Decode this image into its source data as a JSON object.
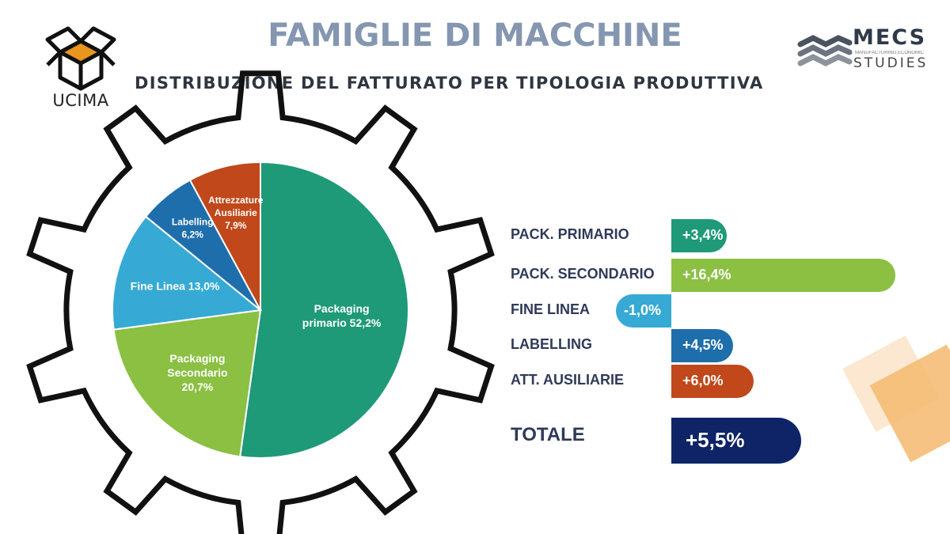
{
  "header": {
    "title": "FAMIGLIE DI MACCHINE",
    "subtitle": "DISTRIBUZIONE DEL FATTURATO PER TIPOLOGIA PRODUTTIVA"
  },
  "logos": {
    "left": {
      "text": "UCIMA",
      "icon": "box-icon"
    },
    "right": {
      "name": "MECS",
      "tagline": "MANUFACTURING ECONOMIC",
      "studies": "STUDIES",
      "icon": "waves-icon"
    }
  },
  "colors": {
    "title": "#8496b0",
    "packaging_primario": "#1e9a78",
    "packaging_secondario": "#8bc043",
    "fine_linea": "#36aad4",
    "labelling": "#1f6eac",
    "attrezzature": "#c0481a",
    "totale": "#0e2467"
  },
  "chart_data": [
    {
      "type": "pie",
      "slices": [
        {
          "label": "Packaging primario 52,2%",
          "lines": [
            "Packaging",
            "primario 52,2%"
          ],
          "value": 52.2,
          "color": "#1e9a78"
        },
        {
          "label": "Packaging Secondario 20,7%",
          "lines": [
            "Packaging",
            "Secondario",
            "20,7%"
          ],
          "value": 20.7,
          "color": "#8bc043"
        },
        {
          "label": "Fine Linea 13,0%",
          "lines": [
            "Fine Linea 13,0%"
          ],
          "value": 13.0,
          "color": "#36aad4"
        },
        {
          "label": "Labelling 6,2%",
          "lines": [
            "Labelling",
            "6,2%"
          ],
          "value": 6.2,
          "color": "#1f6eac"
        },
        {
          "label": "Attrezzature Ausiliarie 7,9%",
          "lines": [
            "Attrezzature",
            "Ausiliarie",
            "7,9%"
          ],
          "value": 7.9,
          "color": "#c0481a"
        }
      ]
    },
    {
      "type": "bar",
      "orientation": "horizontal",
      "categories": [
        "PACK. PRIMARIO",
        "PACK. SECONDARIO",
        "FINE LINEA",
        "LABELLING",
        "ATT. AUSILIARIE"
      ],
      "values": [
        3.4,
        16.4,
        -1.0,
        4.5,
        6.0
      ],
      "value_labels": [
        "+3,4%",
        "+16,4%",
        "-1,0%",
        "+4,5%",
        "+6,0%"
      ],
      "colors": [
        "#1e9a78",
        "#8bc043",
        "#36aad4",
        "#1f6eac",
        "#c0481a"
      ],
      "total": {
        "label": "TOTALE",
        "value": 5.5,
        "value_label": "+5,5%",
        "color": "#0e2467"
      }
    }
  ]
}
